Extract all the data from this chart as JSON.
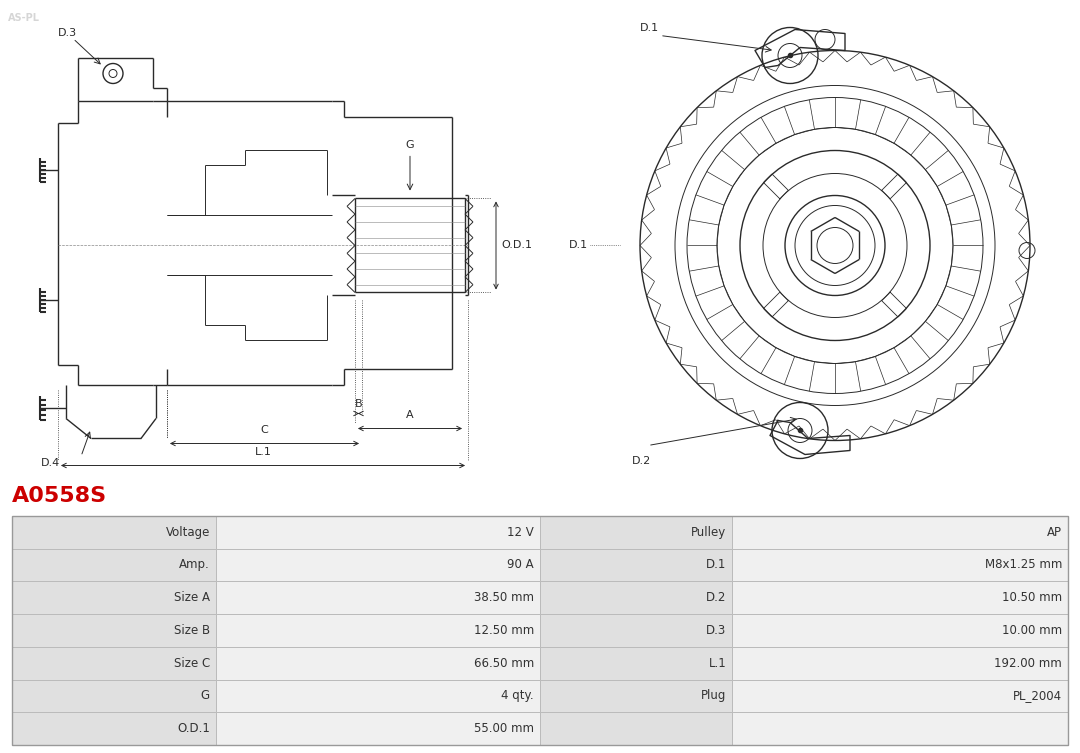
{
  "title": "A0558S",
  "title_color": "#cc0000",
  "bg_color": "#ffffff",
  "line_color": "#2a2a2a",
  "dim_color": "#2a2a2a",
  "table_row_bg1": "#e0e0e0",
  "table_row_bg2": "#f0f0f0",
  "table_border_color": "#bbbbbb",
  "table_data": [
    [
      "Voltage",
      "12 V",
      "Pulley",
      "AP"
    ],
    [
      "Amp.",
      "90 A",
      "D.1",
      "M8x1.25 mm"
    ],
    [
      "Size A",
      "38.50 mm",
      "D.2",
      "10.50 mm"
    ],
    [
      "Size B",
      "12.50 mm",
      "D.3",
      "10.00 mm"
    ],
    [
      "Size C",
      "66.50 mm",
      "L.1",
      "192.00 mm"
    ],
    [
      "G",
      "4 qty.",
      "Plug",
      "PL_2004"
    ],
    [
      "O.D.1",
      "55.00 mm",
      "",
      ""
    ]
  ]
}
